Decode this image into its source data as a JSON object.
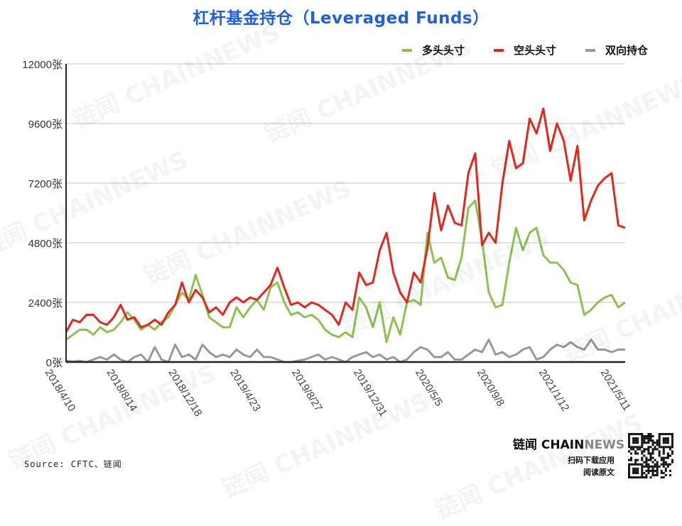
{
  "title": "杠杆基金持仓（Leveraged Funds）",
  "legend": [
    {
      "label": "多头头寸",
      "color": "#8dc152"
    },
    {
      "label": "空头头寸",
      "color": "#e0281e"
    },
    {
      "label": "双向持仓",
      "color": "#999999"
    }
  ],
  "watermark": "链闻 CHAINNEWS",
  "footer": {
    "source": "Source: CFTC、链闻",
    "brand_cn": "链闻 ",
    "brand_chain": "CHAIN",
    "brand_news": "NEWS",
    "line1": "扫码下载应用",
    "line2": "阅读原文"
  },
  "chart_data": {
    "type": "line",
    "title": "杠杆基金持仓（Leveraged Funds）",
    "xlabel": "",
    "ylabel": "",
    "ylim": [
      0,
      12000
    ],
    "y_ticks": [
      0,
      2400,
      4800,
      7200,
      9600,
      12000
    ],
    "y_tick_labels": [
      "0张",
      "2400张",
      "4800张",
      "7200张",
      "9600张",
      "12000张"
    ],
    "x_tick_labels": [
      "2018/4/10",
      "2018/8/14",
      "2018/12/18",
      "2019/4/23",
      "2019/8/27",
      "2019/12/31",
      "2020/5/5",
      "2020/9/8",
      "2021/1/12",
      "2021/5/11"
    ],
    "grid": true,
    "legend_position": "top-right",
    "series": [
      {
        "name": "多头头寸",
        "color": "#8dc152",
        "values": [
          900,
          1100,
          1300,
          1300,
          1100,
          1400,
          1200,
          1300,
          1600,
          2000,
          1700,
          1300,
          1500,
          1300,
          1600,
          1800,
          2300,
          2800,
          2500,
          3500,
          2700,
          1800,
          1600,
          1400,
          1400,
          2200,
          1800,
          2200,
          2500,
          2100,
          3000,
          3200,
          2400,
          1900,
          2000,
          1800,
          1900,
          1700,
          1300,
          1100,
          1000,
          1200,
          1000,
          2600,
          2200,
          1400,
          2400,
          800,
          1800,
          1100,
          2400,
          2500,
          2300,
          5200,
          4000,
          4200,
          3400,
          3300,
          4200,
          6200,
          6500,
          4900,
          2800,
          2200,
          2300,
          4000,
          5400,
          4500,
          5200,
          5400,
          4300,
          4000,
          4000,
          3700,
          3200,
          3100,
          1900,
          2100,
          2400,
          2600,
          2700,
          2200,
          2400
        ]
      },
      {
        "name": "空头头寸",
        "color": "#e0281e",
        "values": [
          1200,
          1700,
          1600,
          1900,
          1900,
          1600,
          1500,
          1800,
          2300,
          1700,
          1800,
          1400,
          1500,
          1700,
          1500,
          2000,
          2300,
          3200,
          2400,
          2900,
          2600,
          2000,
          2200,
          1900,
          2400,
          2600,
          2400,
          2600,
          2500,
          2800,
          3100,
          3800,
          3000,
          2300,
          2400,
          2200,
          2400,
          2300,
          2100,
          1900,
          1500,
          2400,
          2100,
          3600,
          3100,
          3200,
          4500,
          5200,
          3600,
          2800,
          2400,
          3600,
          3200,
          4600,
          6800,
          5300,
          6300,
          5600,
          5500,
          7600,
          8400,
          4700,
          5200,
          4800,
          7200,
          8900,
          7800,
          8000,
          9800,
          9200,
          10200,
          8500,
          9600,
          8900,
          7300,
          8700,
          5700,
          6500,
          7100,
          7400,
          7600,
          5500,
          5400
        ]
      },
      {
        "name": "双向持仓",
        "color": "#999999",
        "values": [
          50,
          20,
          50,
          0,
          100,
          200,
          100,
          300,
          100,
          0,
          200,
          300,
          0,
          600,
          100,
          0,
          700,
          200,
          300,
          100,
          700,
          400,
          200,
          300,
          200,
          500,
          300,
          200,
          500,
          200,
          200,
          100,
          0,
          0,
          50,
          100,
          200,
          300,
          100,
          200,
          100,
          0,
          200,
          300,
          400,
          200,
          300,
          100,
          200,
          0,
          100,
          400,
          600,
          500,
          200,
          200,
          400,
          100,
          100,
          300,
          500,
          400,
          900,
          300,
          400,
          200,
          300,
          500,
          600,
          100,
          200,
          500,
          700,
          600,
          800,
          600,
          500,
          900,
          500,
          500,
          400,
          500,
          500
        ]
      }
    ]
  }
}
